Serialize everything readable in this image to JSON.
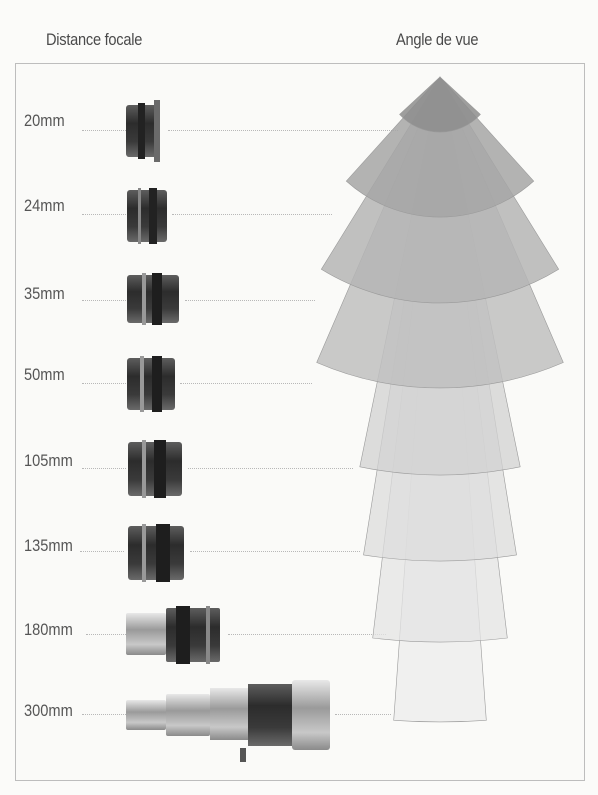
{
  "headers": {
    "focal_length": "Distance focale",
    "angle_of_view": "Angle de vue"
  },
  "lenses": [
    {
      "label": "20mm",
      "focal_mm": 20
    },
    {
      "label": "24mm",
      "focal_mm": 24
    },
    {
      "label": "35mm",
      "focal_mm": 35
    },
    {
      "label": "50mm",
      "focal_mm": 50
    },
    {
      "label": "105mm",
      "focal_mm": 105
    },
    {
      "label": "135mm",
      "focal_mm": 135
    },
    {
      "label": "180mm",
      "focal_mm": 180
    },
    {
      "label": "300mm",
      "focal_mm": 300
    }
  ]
}
